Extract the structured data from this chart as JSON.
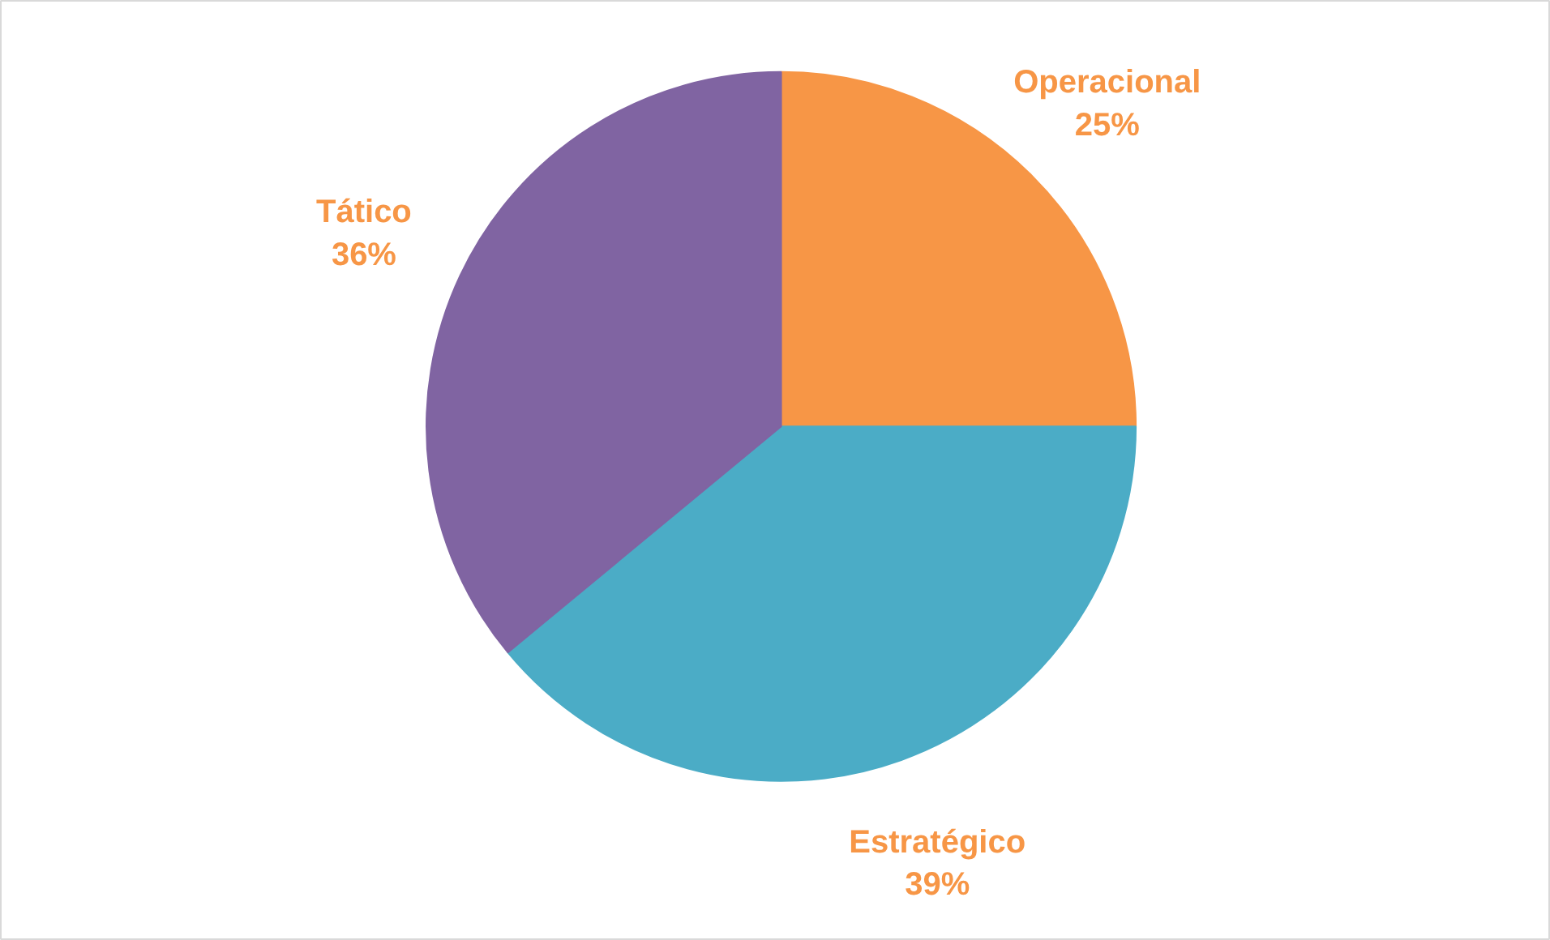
{
  "chart_data": {
    "type": "pie",
    "categories": [
      "Operacional",
      "Estratégico",
      "Tático"
    ],
    "values": [
      25,
      39,
      36
    ],
    "colors": [
      "#f79646",
      "#4bacc6",
      "#8064a2"
    ],
    "value_labels": [
      "25%",
      "39%",
      "36%"
    ]
  }
}
